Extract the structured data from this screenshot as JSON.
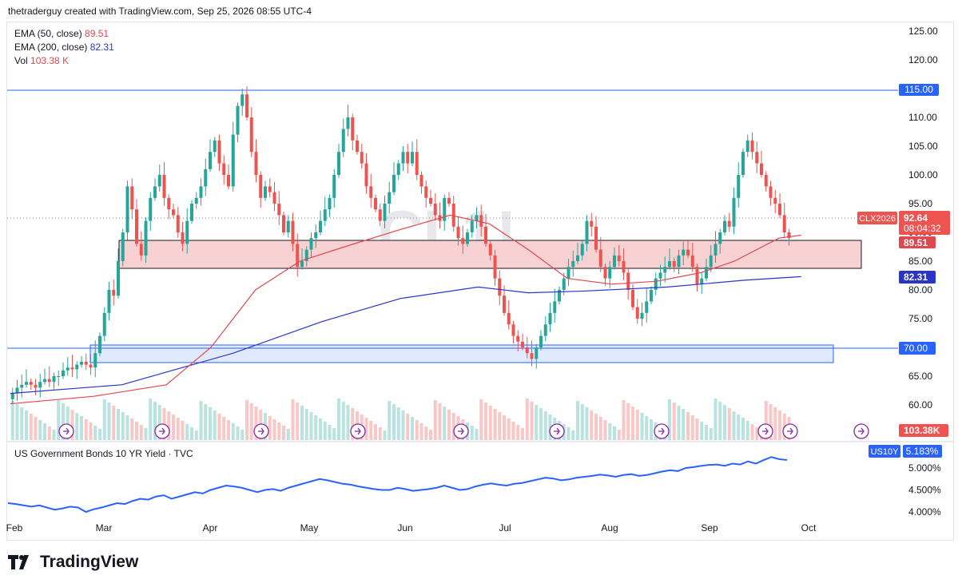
{
  "header": {
    "attribution": "thetraderguy created with TradingView.com, Sep 25, 2026 08:55 UTC-4"
  },
  "legend": {
    "ema50_label": "EMA (50, close)",
    "ema50_value": "89.51",
    "ema200_label": "EMA (200, close)",
    "ema200_value": "82.31",
    "vol_label": "Vol",
    "vol_value": "103.38 K"
  },
  "watermark": "CL1!",
  "price_scale": {
    "ticks": [
      "125.00",
      "120.00",
      "115.00",
      "110.00",
      "105.00",
      "100.00",
      "95.00",
      "90.00",
      "85.00",
      "80.00",
      "75.00",
      "70.00",
      "65.00",
      "60.00"
    ],
    "badges": {
      "level_115": "115.00",
      "symbol": "CLX2026",
      "last_price": "92.64",
      "countdown": "08:04:32",
      "ema50": "89.51",
      "ema200": "82.31",
      "level_70": "70.00",
      "volume": "103.38K"
    }
  },
  "time_axis": {
    "labels": [
      "Feb",
      "Mar",
      "Apr",
      "May",
      "Jun",
      "Jul",
      "Aug",
      "Sep",
      "Oct"
    ]
  },
  "sub_pane": {
    "title": "US Government Bonds 10 YR Yield · TVC",
    "symbol_badge": "US10Y",
    "value_badge": "5.183%",
    "ticks": [
      "5.000%",
      "4.500%",
      "4.000%"
    ]
  },
  "footer": {
    "brand": "TradingView"
  },
  "colors": {
    "up": "#26a69a",
    "down": "#ef5350",
    "ema50": "#e0484e",
    "ema200": "#2935c8",
    "yield_line": "#2962ff",
    "resistance_zone": "#f8d1d3",
    "support_zone": "#dbe6fb"
  },
  "chart_data": [
    {
      "type": "candlestick",
      "symbol": "CLX2026",
      "ylim": [
        58,
        126
      ],
      "levels": [
        115,
        70
      ],
      "zones": [
        {
          "name": "resistance",
          "from": 84,
          "to": 89
        },
        {
          "name": "support",
          "from": 68,
          "to": 70.5
        }
      ],
      "series": [
        {
          "name": "EMA (50, close)",
          "values": [
            [
              0,
              60.2
            ],
            [
              15,
              61.5
            ],
            [
              28,
              63.5
            ],
            [
              36,
              70
            ],
            [
              44,
              80
            ],
            [
              52,
              85
            ],
            [
              60,
              87.5
            ],
            [
              70,
              90.5
            ],
            [
              79,
              93
            ],
            [
              86,
              91.5
            ],
            [
              93,
              87
            ],
            [
              100,
              82
            ],
            [
              108,
              81
            ],
            [
              116,
              81.5
            ],
            [
              124,
              83
            ],
            [
              130,
              85
            ],
            [
              138,
              89
            ],
            [
              142,
              89.51
            ]
          ]
        },
        {
          "name": "EMA (200, close)",
          "values": [
            [
              0,
              62
            ],
            [
              20,
              63.5
            ],
            [
              40,
              69
            ],
            [
              56,
              74.5
            ],
            [
              70,
              78.5
            ],
            [
              84,
              80.5
            ],
            [
              93,
              79.5
            ],
            [
              103,
              79.8
            ],
            [
              118,
              80.5
            ],
            [
              132,
              81.7
            ],
            [
              142,
              82.31
            ]
          ]
        }
      ],
      "candles_ohlc_note": "day index from early Feb to Sep 25",
      "last": 92.64
    },
    {
      "type": "line",
      "title": "US Government Bonds 10 YR Yield · TVC",
      "ylim": [
        3.85,
        5.35
      ],
      "last": 5.183
    }
  ]
}
